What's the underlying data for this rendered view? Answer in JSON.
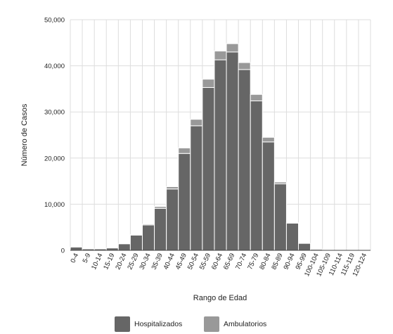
{
  "chart_data": {
    "type": "bar",
    "stacked": true,
    "ylabel": "Número de Casos",
    "xlabel": "Rango de Edad",
    "ylim": [
      0,
      50000
    ],
    "yticks": [
      "0",
      "10,000",
      "20,000",
      "30,000",
      "40,000",
      "50,000"
    ],
    "ytick_values": [
      0,
      10000,
      20000,
      30000,
      40000,
      50000
    ],
    "grid": true,
    "legend_position": "bottom",
    "categories": [
      "0-4",
      "5-9",
      "10-14",
      "15-19",
      "20-24",
      "25-29",
      "30-34",
      "35-39",
      "40-44",
      "45-49",
      "50-54",
      "55-59",
      "60-64",
      "65-69",
      "70-74",
      "75-79",
      "80-84",
      "85-89",
      "90-94",
      "95-99",
      "100-104",
      "105-109",
      "110-114",
      "115-119",
      "120-124"
    ],
    "series": [
      {
        "name": "Hospitalizados",
        "color": "#666666",
        "values": [
          700,
          300,
          300,
          500,
          1400,
          3300,
          5500,
          9100,
          13300,
          21000,
          27000,
          35300,
          41300,
          43000,
          39200,
          32400,
          23500,
          14400,
          5900,
          1500,
          200,
          0,
          0,
          0,
          0
        ]
      },
      {
        "name": "Ambulatorios",
        "color": "#999999",
        "values": [
          0,
          0,
          0,
          0,
          0,
          100,
          200,
          400,
          500,
          1200,
          1400,
          1800,
          1900,
          1800,
          1500,
          1400,
          1000,
          400,
          100,
          0,
          0,
          0,
          0,
          0,
          0
        ]
      }
    ]
  }
}
